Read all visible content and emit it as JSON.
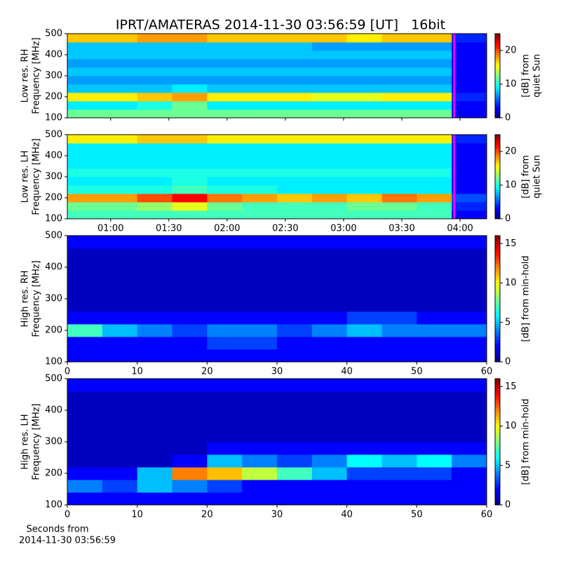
{
  "chart_data": [
    {
      "type": "heatmap",
      "title": "IPRT/AMATERAS 2014-11-30 03:56:59 [UT]   16bit",
      "ylabel": [
        "Low res. RH",
        "Frequency [MHz]"
      ],
      "colorbar_label": [
        "[dB] from",
        "quiet Sun"
      ],
      "xlim": [
        37.7,
        253.7
      ],
      "ylim": [
        100,
        500
      ],
      "yticks": [
        100,
        200,
        300,
        400,
        500
      ],
      "clim": [
        0,
        25
      ],
      "cticks": [
        0,
        10,
        20
      ],
      "cursor": 237,
      "cursor_color": "#ff00ff",
      "z": [
        [
          12,
          12,
          12,
          12,
          12,
          12,
          12,
          12,
          12,
          12,
          12,
          3
        ],
        [
          9,
          9,
          10,
          12,
          9,
          9,
          9,
          9,
          9,
          9,
          9,
          3
        ],
        [
          16,
          16,
          17,
          18,
          16,
          16,
          16,
          15,
          15,
          16,
          16,
          4
        ],
        [
          8,
          8,
          8,
          9,
          8,
          8,
          8,
          8,
          8,
          8,
          8,
          3
        ],
        [
          7,
          7,
          7,
          7,
          7,
          7,
          7,
          7,
          7,
          7,
          7,
          3
        ],
        [
          8,
          8,
          8,
          8,
          8,
          8,
          8,
          8,
          8,
          8,
          8,
          3
        ],
        [
          7,
          7,
          7,
          7,
          7,
          7,
          7,
          7,
          7,
          7,
          7,
          3
        ],
        [
          8,
          8,
          8,
          8,
          8,
          8,
          8,
          8,
          8,
          8,
          8,
          3
        ],
        [
          8,
          8,
          8,
          8,
          8,
          8,
          8,
          7,
          7,
          7,
          7,
          3
        ],
        [
          17,
          17,
          18,
          18,
          17,
          17,
          17,
          17,
          16,
          17,
          17,
          4
        ]
      ]
    },
    {
      "type": "heatmap",
      "ylabel": [
        "Low res. LH",
        "Frequency [MHz]"
      ],
      "colorbar_label": [
        "[dB] from",
        "quiet Sun"
      ],
      "xlim": [
        37.7,
        253.7
      ],
      "ylim": [
        100,
        500
      ],
      "yticks": [
        100,
        200,
        300,
        400,
        500
      ],
      "xticks": [
        {
          "value": 60,
          "label": "01:00"
        },
        {
          "value": 90,
          "label": "01:30"
        },
        {
          "value": 120,
          "label": "02:00"
        },
        {
          "value": 150,
          "label": "02:30"
        },
        {
          "value": 180,
          "label": "03:00"
        },
        {
          "value": 210,
          "label": "03:30"
        },
        {
          "value": 240,
          "label": "04:00"
        }
      ],
      "clim": [
        0,
        25
      ],
      "cticks": [
        0,
        10,
        20
      ],
      "cursor": 237,
      "cursor_color": "#ff00ff",
      "z": [
        [
          11,
          11,
          11,
          11,
          11,
          11,
          11,
          11,
          11,
          11,
          11,
          3
        ],
        [
          12,
          12,
          13,
          15,
          12,
          11,
          11,
          11,
          12,
          12,
          11,
          4
        ],
        [
          18,
          18,
          20,
          22,
          19,
          18,
          17,
          18,
          17,
          19,
          18,
          5
        ],
        [
          10,
          10,
          10,
          11,
          10,
          10,
          9,
          9,
          9,
          9,
          9,
          3
        ],
        [
          9,
          9,
          9,
          10,
          9,
          9,
          9,
          9,
          9,
          9,
          9,
          3
        ],
        [
          10,
          10,
          10,
          10,
          10,
          10,
          10,
          10,
          10,
          10,
          10,
          3
        ],
        [
          9,
          9,
          9,
          9,
          9,
          9,
          9,
          9,
          9,
          9,
          9,
          3
        ],
        [
          9,
          9,
          9,
          9,
          9,
          9,
          9,
          9,
          9,
          9,
          9,
          3
        ],
        [
          9,
          9,
          9,
          9,
          9,
          9,
          9,
          9,
          9,
          9,
          9,
          3
        ],
        [
          16,
          16,
          17,
          17,
          16,
          16,
          16,
          16,
          16,
          16,
          16,
          4
        ]
      ]
    },
    {
      "type": "heatmap",
      "ylabel": [
        "High res. RH",
        "Frequency [MHz]"
      ],
      "colorbar_label": [
        "[dB] from min-hold"
      ],
      "xlim": [
        0,
        60
      ],
      "ylim": [
        100,
        500
      ],
      "yticks": [
        100,
        200,
        300,
        400,
        500
      ],
      "xticks": [
        0,
        10,
        20,
        30,
        40,
        50,
        60
      ],
      "clim": [
        0,
        16
      ],
      "cticks": [
        0,
        5,
        10,
        15
      ],
      "z": [
        [
          2,
          2,
          2,
          2,
          2,
          2,
          2,
          2,
          2,
          2,
          2,
          2
        ],
        [
          2,
          2,
          2,
          2,
          3,
          3,
          2,
          2,
          2,
          2,
          2,
          2
        ],
        [
          7,
          5,
          4,
          3,
          4,
          4,
          3,
          4,
          5,
          4,
          4,
          4
        ],
        [
          2,
          2,
          2,
          2,
          2,
          2,
          2,
          2,
          3,
          3,
          2,
          2
        ],
        [
          1,
          1,
          1,
          1,
          1,
          1,
          1,
          1,
          1,
          1,
          1,
          1
        ],
        [
          1,
          1,
          1,
          1,
          1,
          1,
          1,
          1,
          1,
          1,
          1,
          1
        ],
        [
          1,
          1,
          1,
          1,
          1,
          1,
          1,
          1,
          1,
          1,
          1,
          1
        ],
        [
          1,
          1,
          1,
          1,
          1,
          1,
          1,
          1,
          1,
          1,
          1,
          1
        ],
        [
          1,
          1,
          1,
          1,
          1,
          1,
          1,
          1,
          1,
          1,
          1,
          1
        ],
        [
          2,
          2,
          2,
          2,
          2,
          2,
          2,
          2,
          2,
          2,
          2,
          2
        ]
      ]
    },
    {
      "type": "heatmap",
      "ylabel": [
        "High res. LH",
        "Frequency [MHz]"
      ],
      "colorbar_label": [
        "[dB] from min-hold"
      ],
      "xlabel": [
        "Seconds from",
        "2014-11-30 03:56:59"
      ],
      "xlim": [
        0,
        60
      ],
      "ylim": [
        100,
        500
      ],
      "yticks": [
        100,
        200,
        300,
        400,
        500
      ],
      "xticks": [
        0,
        10,
        20,
        30,
        40,
        50,
        60
      ],
      "clim": [
        0,
        16
      ],
      "cticks": [
        0,
        5,
        10,
        15
      ],
      "z": [
        [
          2,
          2,
          2,
          2,
          2,
          2,
          2,
          2,
          2,
          2,
          2,
          2
        ],
        [
          4,
          3,
          5,
          4,
          3,
          2,
          2,
          2,
          2,
          2,
          2,
          2
        ],
        [
          2,
          2,
          5,
          12,
          11,
          9,
          7,
          5,
          3,
          3,
          3,
          2
        ],
        [
          1,
          1,
          1,
          2,
          5,
          4,
          3,
          4,
          6,
          5,
          6,
          4
        ],
        [
          1,
          1,
          1,
          1,
          2,
          2,
          2,
          2,
          2,
          2,
          2,
          2
        ],
        [
          1,
          1,
          1,
          1,
          1,
          1,
          1,
          1,
          1,
          1,
          1,
          1
        ],
        [
          1,
          1,
          1,
          1,
          1,
          1,
          1,
          1,
          1,
          1,
          1,
          1
        ],
        [
          1,
          1,
          1,
          1,
          1,
          1,
          1,
          1,
          1,
          1,
          1,
          1
        ],
        [
          1,
          1,
          1,
          1,
          1,
          1,
          1,
          1,
          1,
          1,
          1,
          1
        ],
        [
          2,
          2,
          2,
          2,
          2,
          2,
          2,
          2,
          2,
          2,
          2,
          2
        ]
      ]
    }
  ]
}
